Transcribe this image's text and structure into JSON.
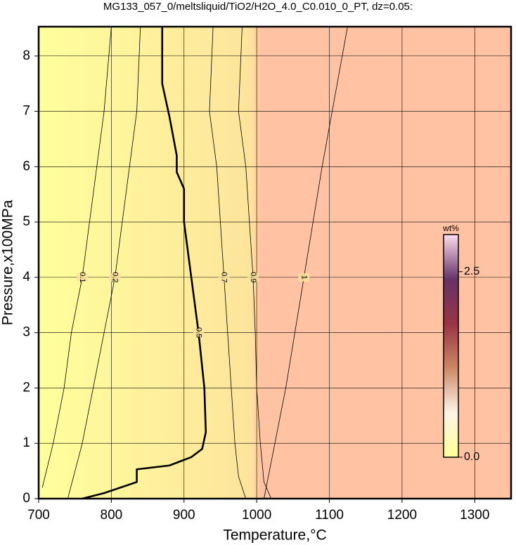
{
  "chart_data": {
    "type": "contour",
    "title": "MG133_057_0/meltsliquid/TiO2/H2O_4.0_C0.010_0_PT, dz=0.05:",
    "x_label": "Temperature,°C",
    "y_label": "Pressure,x100MPa",
    "xlim": [
      700,
      1350
    ],
    "ylim": [
      0,
      8.53
    ],
    "xticks": [
      700,
      800,
      900,
      1000,
      1100,
      1200,
      1300
    ],
    "yticks": [
      0,
      1,
      2,
      3,
      4,
      5,
      6,
      7,
      8
    ],
    "grid": true,
    "contours": [
      {
        "level": 0.1,
        "x": [
          705,
          720,
          735,
          745,
          760,
          770,
          780,
          790,
          800
        ],
        "y": [
          0.2,
          1,
          2,
          3,
          4,
          5,
          6,
          7,
          8.53
        ]
      },
      {
        "level": 0.2,
        "x": [
          740,
          760,
          775,
          790,
          805,
          815,
          825,
          835,
          840
        ],
        "y": [
          0,
          1,
          2,
          3,
          4,
          5,
          6,
          7,
          8.53
        ]
      },
      {
        "level": 0.5,
        "x": [
          760,
          790,
          835,
          835,
          880,
          910,
          925,
          930,
          928,
          920,
          910,
          900,
          900,
          890,
          890,
          880,
          870,
          870
        ],
        "y": [
          0,
          0.1,
          0.3,
          0.53,
          0.6,
          0.75,
          0.9,
          1.2,
          2,
          3,
          4,
          5,
          5.6,
          5.9,
          6.2,
          6.9,
          7.5,
          8.53
        ]
      },
      {
        "level": 0.7,
        "x": [
          985,
          975,
          970,
          965,
          960,
          955,
          950,
          945,
          935,
          940
        ],
        "y": [
          0,
          0.4,
          1,
          2,
          3,
          4,
          5,
          6,
          7,
          8.53
        ]
      },
      {
        "level": 0.9,
        "x": [
          1020,
          1010,
          1005,
          1000,
          998,
          995,
          990,
          985,
          975,
          980
        ],
        "y": [
          0,
          0.3,
          1,
          2,
          3,
          4,
          5,
          6,
          7,
          8.53
        ]
      },
      {
        "level": 1,
        "x": [
          1010,
          1040,
          1065,
          1090,
          1125
        ],
        "y": [
          0,
          2,
          4,
          6,
          8.53
        ]
      }
    ],
    "colorbar": {
      "label": "wt%",
      "zlim": [
        0,
        3.0
      ],
      "ticks": [
        {
          "value": 0,
          "label": "0.0"
        },
        2.5
      ],
      "colors": [
        "#ffff99",
        "#fff4e8",
        "#cc8866",
        "#993344",
        "#663366",
        "#ffddf0"
      ]
    }
  }
}
